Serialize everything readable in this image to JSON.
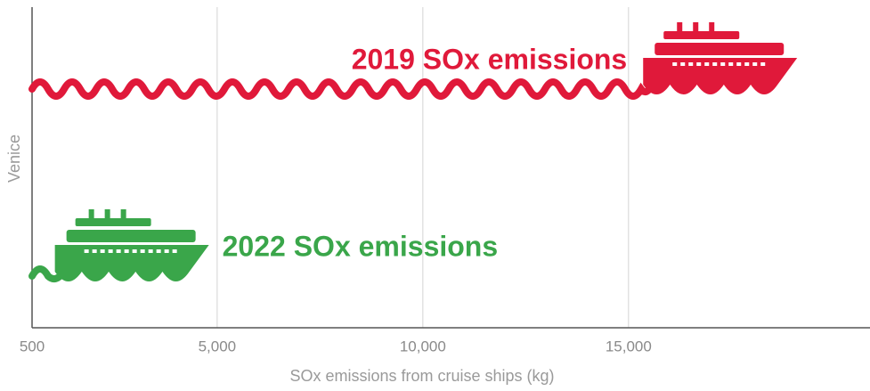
{
  "chart_data": {
    "type": "bar",
    "orientation": "horizontal",
    "categories": [
      "Venice"
    ],
    "series": [
      {
        "name": "2019 SOx emissions",
        "color": "#e0193a",
        "values": [
          19100
        ]
      },
      {
        "name": "2022 SOx emissions",
        "color": "#3aa64a",
        "values": [
          4800
        ]
      }
    ],
    "xlabel": "SOx emissions from cruise ships (kg)",
    "xlim": [
      500,
      21000
    ],
    "xticks": [
      500,
      {
        "value": 5000,
        "label": "5,000"
      },
      {
        "value": 10000,
        "label": "10,000"
      },
      {
        "value": 15000,
        "label": "15,000"
      }
    ],
    "grid": true
  }
}
